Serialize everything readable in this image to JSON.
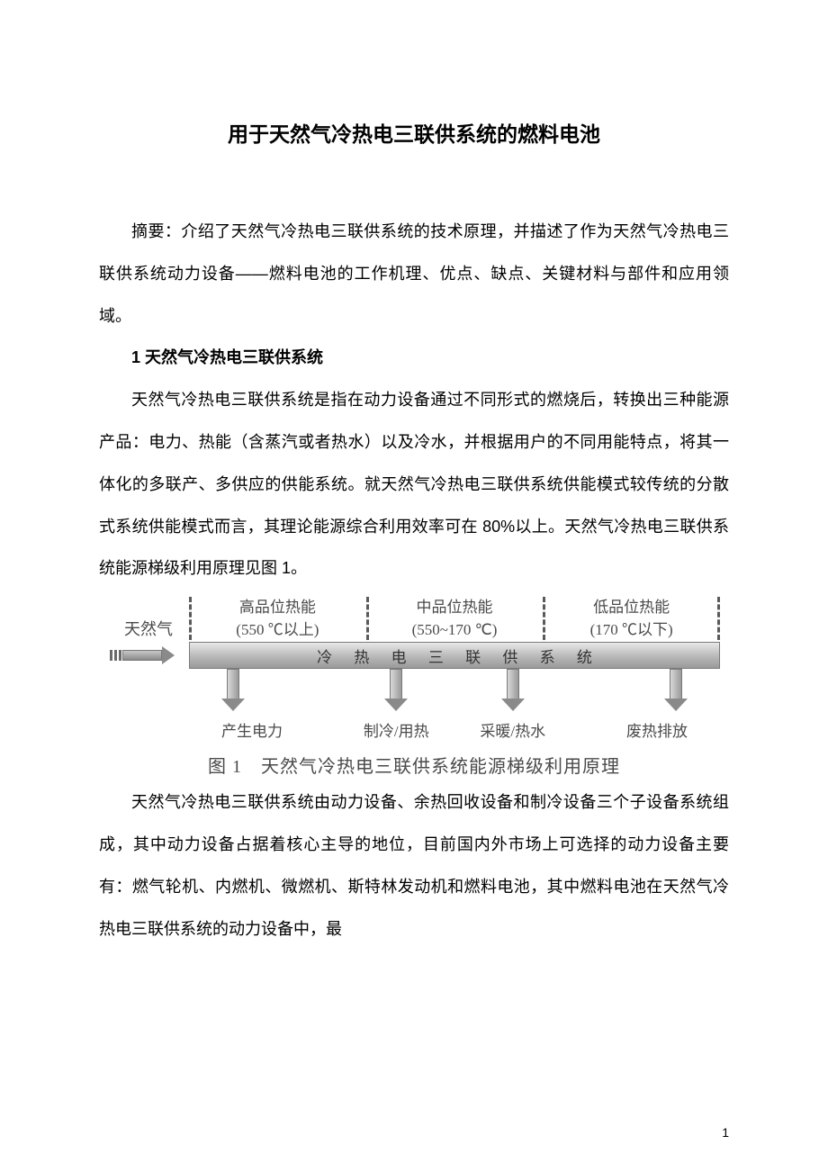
{
  "title": "用于天然气冷热电三联供系统的燃料电池",
  "abstract": "摘要：介绍了天然气冷热电三联供系统的技术原理，并描述了作为天然气冷热电三联供系统动力设备——燃料电池的工作机理、优点、缺点、关键材料与部件和应用领域。",
  "section1_heading": "1 天然气冷热电三联供系统",
  "para1": "天然气冷热电三联供系统是指在动力设备通过不同形式的燃烧后，转换出三种能源产品：电力、热能（含蒸汽或者热水）以及冷水，并根据用户的不同用能特点，将其一体化的多联产、多供应的供能系统。就天然气冷热电三联供系统供能模式较传统的分散式系统供能模式而言，其理论能源综合利用效率可在 80%以上。天然气冷热电三联供系统能源梯级利用原理见图 1。",
  "para2": "天然气冷热电三联供系统由动力设备、余热回收设备和制冷设备三个子设备系统组成，其中动力设备占据着核心主导的地位，目前国内外市场上可选择的动力设备主要有：燃气轮机、内燃机、微燃机、斯特林发动机和燃料电池，其中燃料电池在天然气冷热电三联供系统的动力设备中，最",
  "figure": {
    "input_label": "天然气",
    "bar_label": "冷 热 电 三 联 供 系 统",
    "tiers": [
      {
        "name": "高品位热能",
        "range": "(550 ℃以上)"
      },
      {
        "name": "中品位热能",
        "range": "(550~170 ℃)"
      },
      {
        "name": "低品位热能",
        "range": "(170 ℃以下)"
      }
    ],
    "outputs": [
      "产生电力",
      "制冷/用热",
      "采暖/热水",
      "废热排放"
    ],
    "caption": "图 1　天然气冷热电三联供系统能源梯级利用原理"
  },
  "page_number": "1",
  "colors": {
    "text": "#000000",
    "diagram_text": "#4a4a4a",
    "bar_gradient_top": "#e8e8e8",
    "bar_gradient_bottom": "#9a9a9a",
    "arrow_fill": "#8a8a8a",
    "dash": "#5a5a5a",
    "background": "#ffffff"
  }
}
